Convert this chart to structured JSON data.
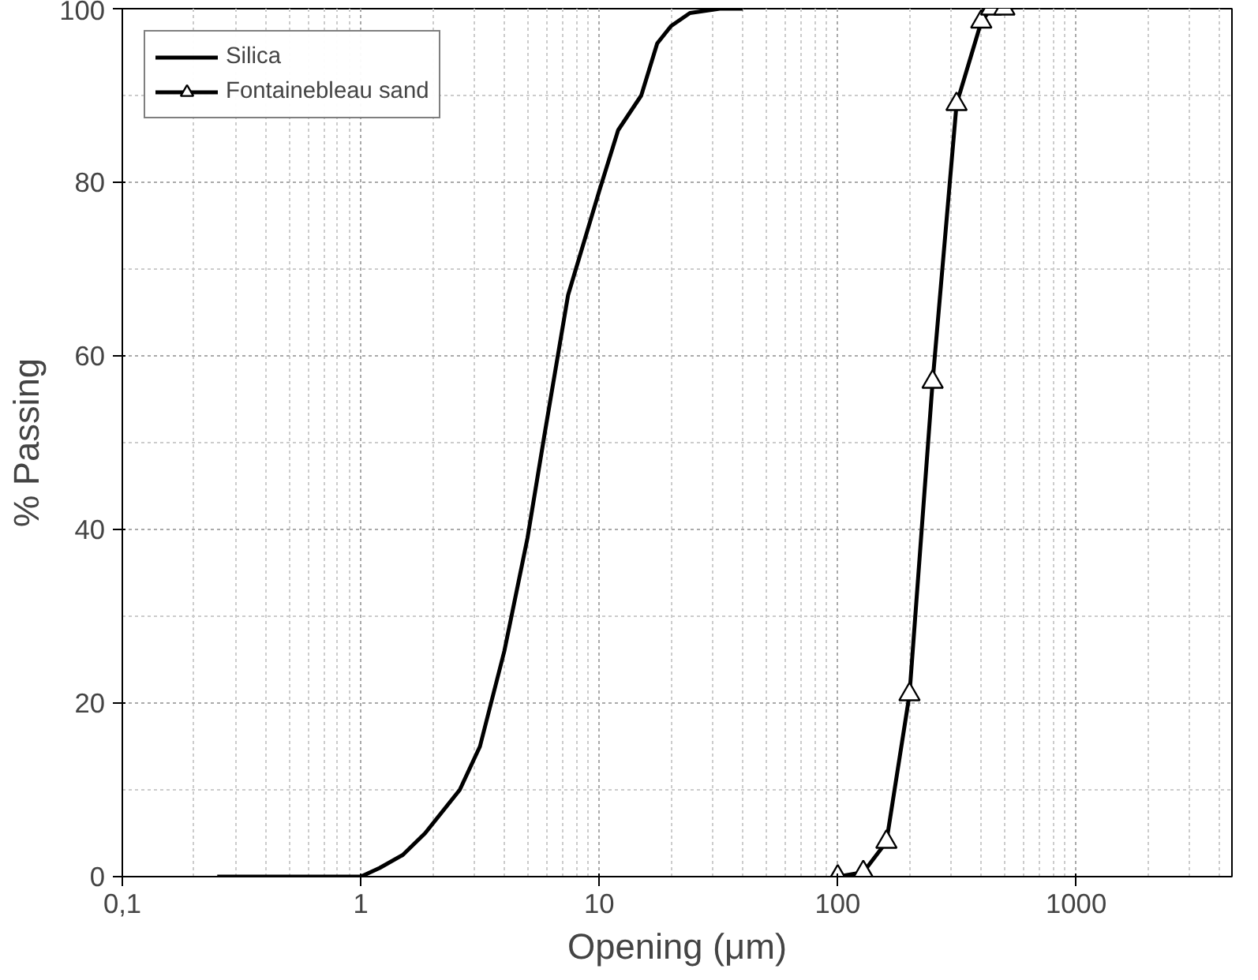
{
  "chart_data": {
    "type": "line",
    "xlabel": "Opening (μm)",
    "ylabel": "% Passing",
    "log": "x",
    "xlim": [
      0.1,
      4500
    ],
    "ylim": [
      0,
      100
    ],
    "xticks": [
      {
        "value": 0.1,
        "label": "0,1"
      },
      1,
      10,
      100,
      1000
    ],
    "yticks": [
      0,
      20,
      40,
      60,
      80,
      100
    ],
    "grid": true,
    "legend": "top left",
    "line_style": "solid",
    "series": [
      {
        "name": "Silica",
        "color": "#000000",
        "marker": "none",
        "x": [
          0.25,
          0.5,
          0.8,
          1.0,
          1.2,
          1.5,
          1.86,
          2.6,
          3.16,
          4.0,
          5.0,
          5.9,
          7.4,
          10,
          12,
          15,
          17.5,
          20,
          24,
          32,
          40
        ],
        "values": [
          0,
          0,
          0,
          0,
          1,
          2.5,
          5,
          10,
          15,
          26,
          39,
          51,
          67,
          79,
          86,
          90,
          96,
          98,
          99.5,
          100,
          100
        ]
      },
      {
        "name": "Fontainebleau sand",
        "color": "#000000",
        "marker": "triangle",
        "x": [
          100,
          128,
          160,
          200,
          250,
          315,
          400,
          440,
          500
        ],
        "values": [
          0,
          0.5,
          4,
          21,
          57,
          89,
          98.5,
          100,
          100
        ]
      }
    ]
  }
}
